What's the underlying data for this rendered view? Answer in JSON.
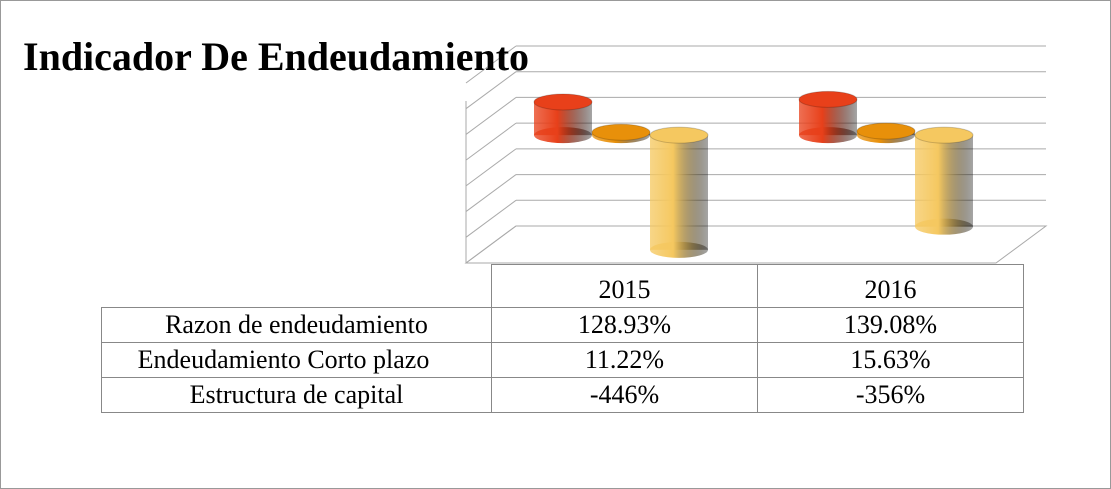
{
  "chart_data": {
    "type": "bar3d",
    "title": "Indicador De Endeudamiento",
    "categories": [
      "2015",
      "2016"
    ],
    "series": [
      {
        "name": "Razon de endeudamiento",
        "color": "#e8401a",
        "values": [
          128.93,
          139.08
        ],
        "value_labels": [
          "128.93%",
          "139.08%"
        ]
      },
      {
        "name": "Endeudamiento Corto plazo",
        "color": "#e8900a",
        "values": [
          11.22,
          15.63
        ],
        "value_labels": [
          "11.22%",
          "15.63%"
        ]
      },
      {
        "name": "Estructura de capital",
        "color": "#f5c860",
        "values": [
          -446,
          -356
        ],
        "value_labels": [
          "-446%",
          "-356%"
        ]
      }
    ],
    "ylim": [
      -400,
      300
    ],
    "yticks": [
      -400,
      -300,
      -200,
      -100,
      0,
      100,
      200,
      300
    ],
    "grid": true
  }
}
